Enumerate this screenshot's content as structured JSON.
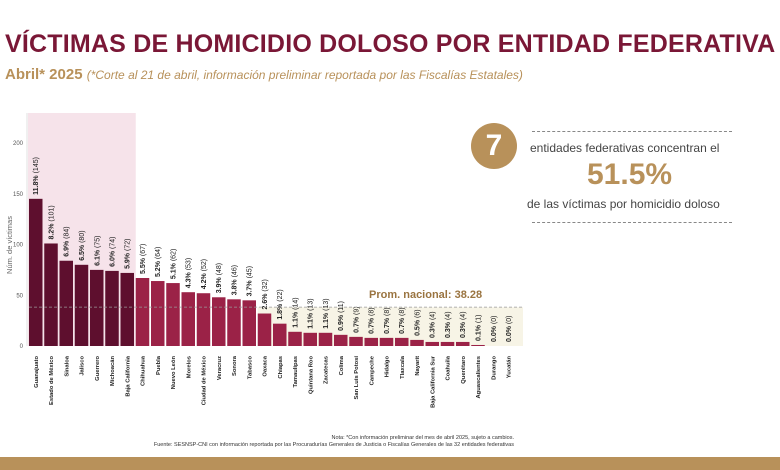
{
  "header": {
    "title": "VÍCTIMAS DE HOMICIDIO DOLOSO POR ENTIDAD FEDERATIVA",
    "period": "Abril* 2025",
    "subtitle_note": "(*Corte al 21 de abril, información preliminar reportada por las Fiscalías Estatales)"
  },
  "callout": {
    "count": "7",
    "line1": "entidades federativas concentran el",
    "percent": "51.5%",
    "line2": "de las víctimas por homicidio doloso"
  },
  "notes": {
    "nota": "Nota: *Con información preliminar del mes de abril 2025, sujeto a cambios.",
    "fuente": "Fuente: SESNSP-CNI con información reportada por las Procuradurías Generales de Justicia o Fiscalías Generales de las 32 entidades federativas"
  },
  "colors": {
    "top": "#5e0f2e",
    "rest": "#9b2247",
    "highlight": "#f6e3ea",
    "accent": "#b8915a",
    "title": "#7a1736"
  },
  "chart_data": {
    "type": "bar",
    "ylabel": "Núm. de víctimas",
    "ylim": [
      0,
      220
    ],
    "yticks": [
      0,
      50,
      100,
      150,
      200
    ],
    "average_label": "Prom. nacional: 38.28",
    "average": 38.28,
    "highlight_top": 7,
    "categories": [
      "Guanajuato",
      "Estado de México",
      "Sinaloa",
      "Jalisco",
      "Guerrero",
      "Michoacán",
      "Baja California",
      "Chihuahua",
      "Puebla",
      "Nuevo León",
      "Morelos",
      "Ciudad de México",
      "Veracruz",
      "Sonora",
      "Tabasco",
      "Oaxaca",
      "Chiapas",
      "Tamaulipas",
      "Quintana Roo",
      "Zacatecas",
      "Colima",
      "San Luis Potosí",
      "Campeche",
      "Hidalgo",
      "Tlaxcala",
      "Nayarit",
      "Baja California Sur",
      "Coahuila",
      "Querétaro",
      "Aguascalientes",
      "Durango",
      "Yucatán"
    ],
    "values": [
      145,
      101,
      84,
      80,
      75,
      74,
      72,
      67,
      64,
      62,
      53,
      52,
      48,
      46,
      45,
      32,
      22,
      14,
      13,
      13,
      11,
      9,
      8,
      8,
      8,
      6,
      4,
      4,
      4,
      1,
      0,
      0
    ],
    "percents": [
      "11.8%",
      "8.2%",
      "6.9%",
      "6.5%",
      "6.1%",
      "6.0%",
      "5.9%",
      "5.5%",
      "5.2%",
      "5.1%",
      "4.3%",
      "4.2%",
      "3.9%",
      "3.8%",
      "3.7%",
      "2.6%",
      "1.8%",
      "1.1%",
      "1.1%",
      "1.1%",
      "0.9%",
      "0.7%",
      "0.7%",
      "0.7%",
      "0.7%",
      "0.5%",
      "0.3%",
      "0.3%",
      "0.3%",
      "0.1%",
      "0.0%",
      "0.0%"
    ]
  }
}
